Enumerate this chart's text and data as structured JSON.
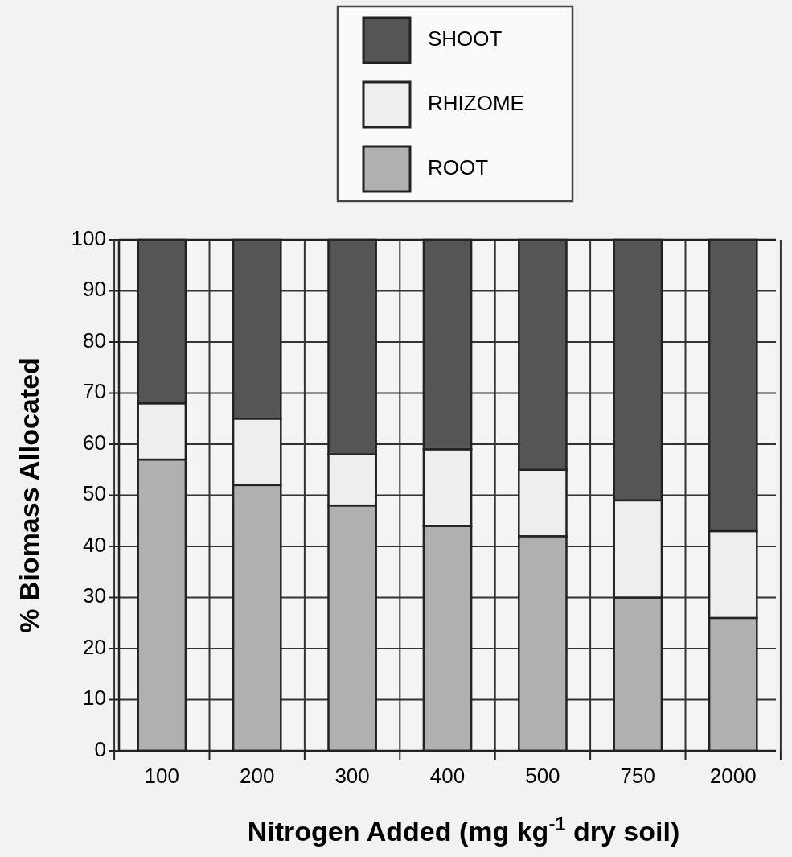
{
  "chart_data": {
    "type": "bar",
    "stacked": true,
    "xlabel": "Nitrogen Added (mg kg$^{-1}$ dry soil)",
    "ylabel": "% Biomass Allocated",
    "categories": [
      "100",
      "200",
      "300",
      "400",
      "500",
      "750",
      "2000"
    ],
    "series": [
      {
        "name": "ROOT",
        "color": "#b0b0b0",
        "values": [
          57,
          52,
          48,
          44,
          42,
          30,
          26
        ]
      },
      {
        "name": "RHIZOME",
        "color": "#eeeeee",
        "values": [
          11,
          13,
          10,
          15,
          13,
          19,
          17
        ]
      },
      {
        "name": "SHOOT",
        "color": "#555555",
        "values": [
          32,
          35,
          42,
          41,
          45,
          51,
          57
        ]
      }
    ],
    "ylim": [
      0,
      100
    ],
    "yticks": [
      0,
      10,
      20,
      30,
      40,
      50,
      60,
      70,
      80,
      90,
      100
    ],
    "grid": true,
    "legend": "top"
  }
}
